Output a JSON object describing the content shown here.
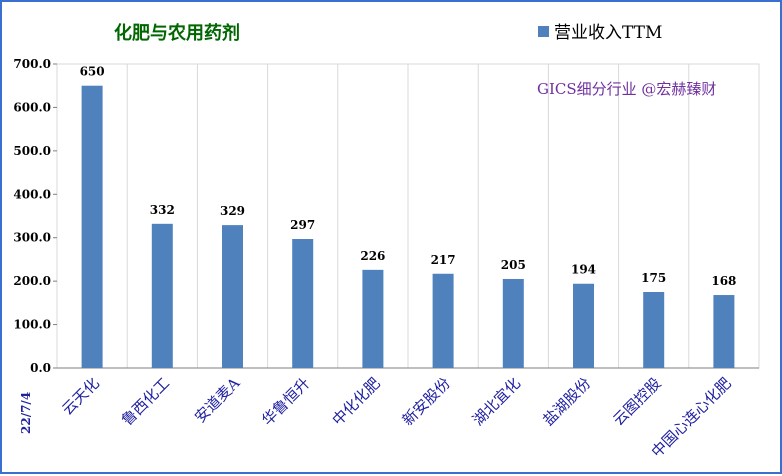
{
  "chart_data": {
    "type": "bar",
    "title": "化肥与农用药剂",
    "legend": [
      "营业收入TTM"
    ],
    "legend_position": "top-right",
    "watermark": "GICS细分行业 @宏赫臻财",
    "date_label": "22/7/4",
    "categories": [
      "云天化",
      "鲁西化工",
      "安道麦A",
      "华鲁恒升",
      "中化化肥",
      "新安股份",
      "湖北宜化",
      "盐湖股份",
      "云图控股",
      "中国心连心化肥"
    ],
    "series": [
      {
        "name": "营业收入TTM",
        "values": [
          650,
          332,
          329,
          297,
          226,
          217,
          205,
          194,
          175,
          168
        ]
      }
    ],
    "data_labels": [
      "650",
      "332",
      "329",
      "297",
      "226",
      "217",
      "205",
      "194",
      "175",
      "168"
    ],
    "yticks": [
      "0.0",
      "100.0",
      "200.0",
      "300.0",
      "400.0",
      "500.0",
      "600.0",
      "700.0"
    ],
    "ylim": [
      0,
      700
    ],
    "grid": "vertical",
    "bar_color": "#4f81bd"
  }
}
